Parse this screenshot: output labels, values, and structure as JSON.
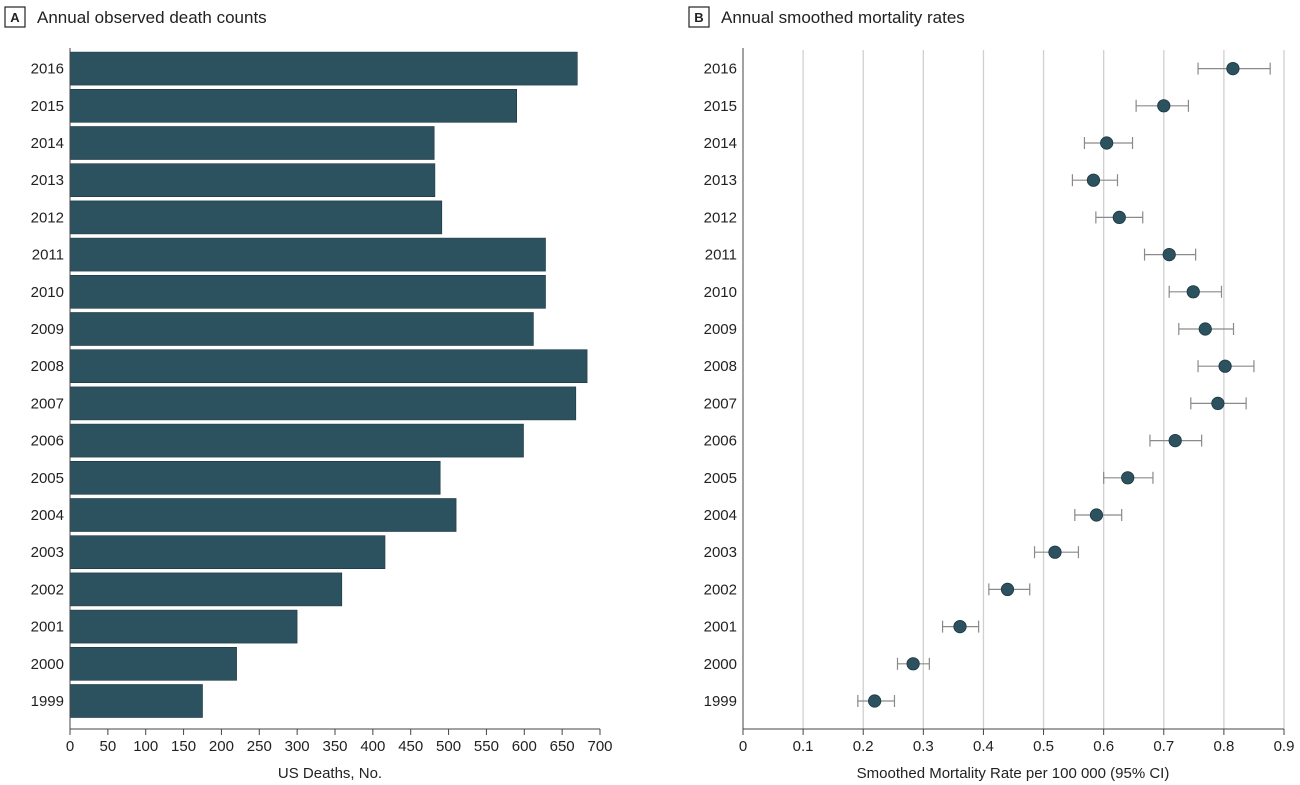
{
  "colors": {
    "bar": "#2d525f",
    "marker": "#2d525f",
    "errorbar": "#8a8a8a",
    "grid": "#d0d0d0",
    "axis": "#444444",
    "text": "#222222"
  },
  "chart_data": [
    {
      "type": "bar",
      "orientation": "horizontal",
      "panel_letter": "A",
      "title": "Annual observed death counts",
      "xlabel": "US Deaths, No.",
      "ylabel": "",
      "xlim": [
        0,
        700
      ],
      "xticks": [
        0,
        50,
        100,
        150,
        200,
        250,
        300,
        350,
        400,
        450,
        500,
        550,
        600,
        650,
        700
      ],
      "grid": false,
      "categories": [
        "2016",
        "2015",
        "2014",
        "2013",
        "2012",
        "2011",
        "2010",
        "2009",
        "2008",
        "2007",
        "2006",
        "2005",
        "2004",
        "2003",
        "2002",
        "2001",
        "2000",
        "1999"
      ],
      "values": [
        670,
        590,
        481,
        482,
        491,
        628,
        628,
        612,
        683,
        668,
        599,
        489,
        510,
        416,
        359,
        300,
        220,
        175
      ]
    },
    {
      "type": "scatter",
      "subtype": "point-with-error-bars",
      "panel_letter": "B",
      "title": "Annual smoothed mortality rates",
      "xlabel": "Smoothed Mortality Rate per 100 000 (95% CI)",
      "ylabel": "",
      "xlim": [
        0,
        0.9
      ],
      "xticks": [
        "0",
        "0.1",
        "0.2",
        "0.3",
        "0.4",
        "0.5",
        "0.6",
        "0.7",
        "0.8",
        "0.9"
      ],
      "grid": true,
      "categories": [
        "2016",
        "2015",
        "2014",
        "2013",
        "2012",
        "2011",
        "2010",
        "2009",
        "2008",
        "2007",
        "2006",
        "2005",
        "2004",
        "2003",
        "2002",
        "2001",
        "2000",
        "1999"
      ],
      "values": [
        0.815,
        0.7,
        0.605,
        0.583,
        0.626,
        0.709,
        0.749,
        0.769,
        0.802,
        0.79,
        0.719,
        0.64,
        0.588,
        0.519,
        0.44,
        0.361,
        0.283,
        0.219
      ],
      "ci_low": [
        0.757,
        0.654,
        0.568,
        0.548,
        0.587,
        0.668,
        0.709,
        0.725,
        0.757,
        0.745,
        0.677,
        0.6,
        0.552,
        0.485,
        0.409,
        0.332,
        0.257,
        0.191
      ],
      "ci_high": [
        0.877,
        0.741,
        0.648,
        0.623,
        0.665,
        0.753,
        0.796,
        0.816,
        0.85,
        0.837,
        0.763,
        0.682,
        0.63,
        0.558,
        0.477,
        0.392,
        0.31,
        0.252
      ]
    }
  ]
}
